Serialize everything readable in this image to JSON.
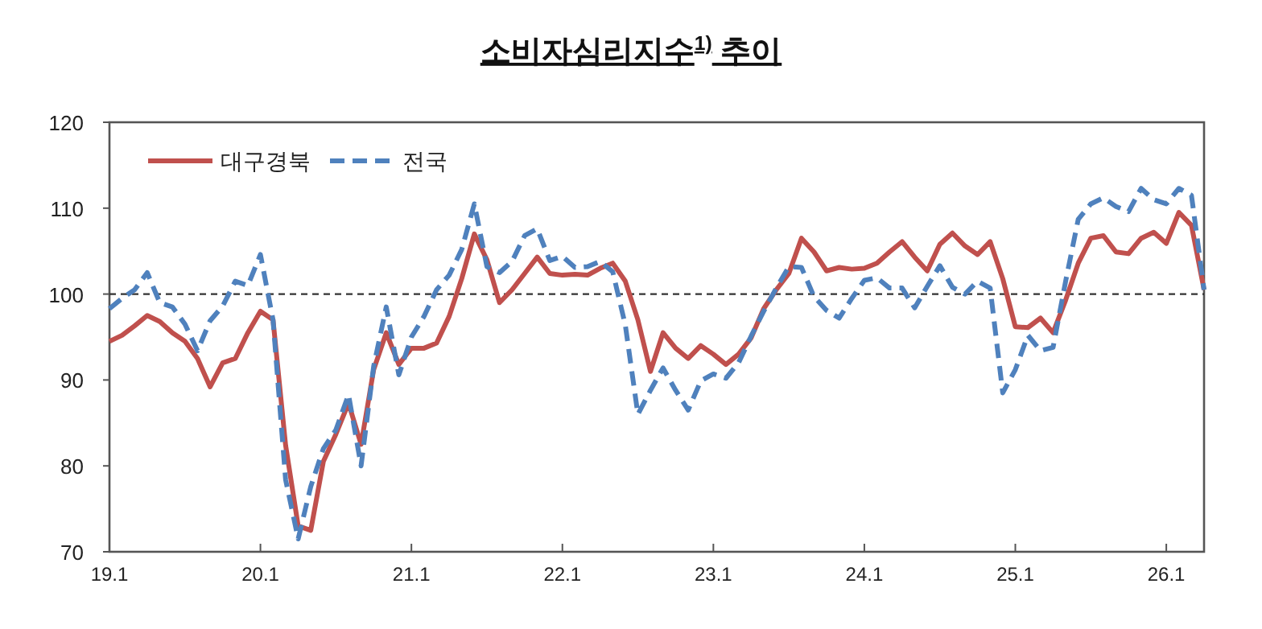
{
  "chart_data": {
    "type": "line",
    "title": "소비자심리지수$^{1)}$ 추이",
    "categories": [
      "19.1",
      null,
      null,
      null,
      null,
      null,
      null,
      null,
      null,
      null,
      null,
      null,
      "20.1",
      null,
      null,
      null,
      null,
      null,
      null,
      null,
      null,
      null,
      null,
      null,
      "21.1",
      null,
      null,
      null,
      null,
      null,
      null,
      null,
      null,
      null,
      null,
      null,
      "22.1",
      null,
      null,
      null,
      null,
      null,
      null,
      null,
      null,
      null,
      null,
      null,
      "23.1",
      null,
      null,
      null,
      null,
      null,
      null,
      null,
      null,
      null,
      null,
      null,
      "24.1",
      null,
      null,
      null,
      null,
      null,
      null,
      null,
      null,
      null,
      null,
      null,
      "25.1",
      null,
      null,
      null,
      null,
      null,
      null,
      null,
      null,
      null,
      null,
      null,
      "26.1",
      null,
      null,
      null
    ],
    "series": [
      {
        "name": "대구경북",
        "color": "#c0504d",
        "line_style": "solid",
        "values": [
          94.5,
          95.2,
          96.3,
          97.5,
          96.8,
          95.5,
          94.5,
          92.5,
          89.2,
          92,
          92.5,
          95.5,
          98,
          97,
          82.4,
          73,
          72.5,
          80.5,
          83.7,
          87.3,
          82.5,
          91.2,
          95.5,
          91.8,
          93.7,
          93.7,
          94.3,
          97.4,
          101.8,
          107,
          104,
          99,
          100.5,
          102.4,
          104.3,
          102.4,
          102.2,
          102.3,
          102.2,
          103,
          103.6,
          101.5,
          97,
          91,
          95.5,
          93.7,
          92.5,
          94,
          93,
          91.8,
          93,
          94.9,
          98.3,
          100.5,
          102.4,
          106.5,
          104.9,
          102.7,
          103.1,
          102.9,
          103,
          103.6,
          104.9,
          106.1,
          104.3,
          102.7,
          105.8,
          107.1,
          105.6,
          104.6,
          106.1,
          101.8,
          96.2,
          96.1,
          97.2,
          95.5,
          99.3,
          103.6,
          106.5,
          106.8,
          104.9,
          104.7,
          106.5,
          107.2,
          105.9,
          109.5,
          108,
          100.5
        ]
      },
      {
        "name": "전국",
        "color": "#4f81bd",
        "line_style": "dashed",
        "values": [
          98.3,
          99.5,
          100.5,
          102.5,
          99,
          98.5,
          96.5,
          93.4,
          96.9,
          98.6,
          101.5,
          101,
          104.6,
          97,
          78.4,
          71.5,
          77.6,
          82,
          84.2,
          88.3,
          80,
          91.6,
          98.5,
          90.6,
          95,
          97.4,
          100.5,
          102.2,
          105.2,
          110.5,
          103.2,
          102.5,
          103.8,
          106.8,
          107.6,
          103.9,
          104.4,
          103.1,
          103.2,
          103.8,
          102.6,
          96.4,
          86,
          88.8,
          91.4,
          88.8,
          86.5,
          89.9,
          90.7,
          90.2,
          92,
          95.1,
          98,
          100.7,
          103.2,
          103.1,
          99.7,
          98.1,
          97.2,
          99.5,
          101.6,
          101.9,
          100.7,
          100.7,
          98.4,
          100.9,
          103.3,
          100.8,
          100,
          101.5,
          100.7,
          88.5,
          91.2,
          95.2,
          93.4,
          93.8,
          101.5,
          108.7,
          110.5,
          111.2,
          110.2,
          109.6,
          112.3,
          111,
          110.5,
          112.3,
          111.5,
          100.5
        ]
      }
    ],
    "ylim": [
      70,
      120
    ],
    "yticks": [
      70,
      80,
      90,
      100,
      110,
      120
    ],
    "ref_lines": [
      {
        "axis": "y",
        "value": 100,
        "color": "#333333",
        "line_style": "dashed"
      }
    ],
    "legend": "top left",
    "grid": false
  }
}
